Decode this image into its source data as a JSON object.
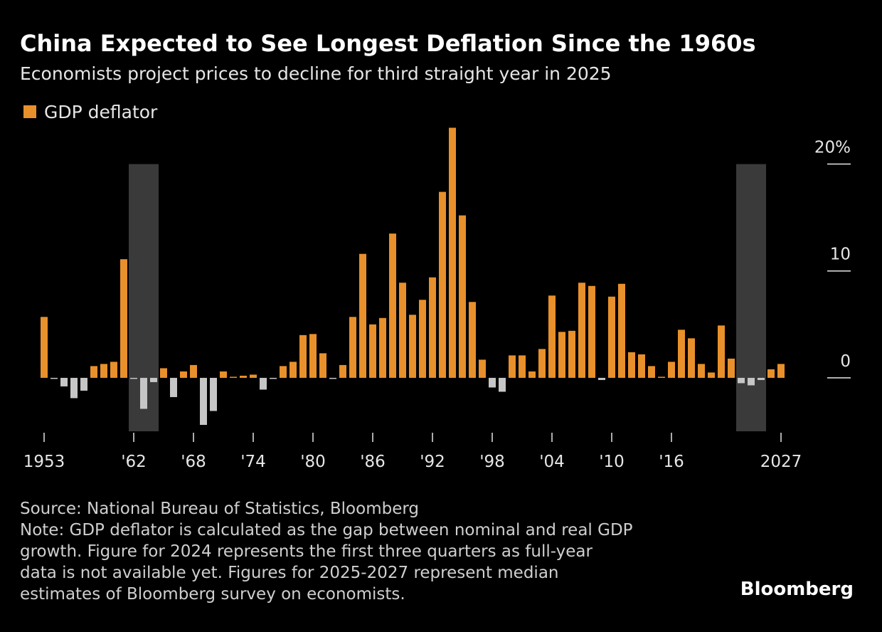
{
  "chart_data": {
    "type": "bar",
    "title": "China Expected to See Longest Deflation Since the 1960s",
    "subtitle": "Economists project prices to decline for third straight year in 2025",
    "series": [
      {
        "name": "GDP deflator",
        "color": "#e8902b",
        "negative_color": "#c6c6c6",
        "values": [
          5.7,
          -0.1,
          -0.8,
          -1.9,
          -1.2,
          1.1,
          1.3,
          1.5,
          11.1,
          -0.1,
          -2.9,
          -0.4,
          0.9,
          -1.8,
          0.6,
          1.2,
          -4.4,
          -3.1,
          0.6,
          0.1,
          0.2,
          0.3,
          -1.1,
          -0.1,
          1.1,
          1.5,
          4.0,
          4.1,
          2.3,
          -0.1,
          1.2,
          5.7,
          11.6,
          5.0,
          5.6,
          13.5,
          8.9,
          5.9,
          7.3,
          9.4,
          17.4,
          23.4,
          15.2,
          7.1,
          1.7,
          -0.9,
          -1.3,
          2.1,
          2.1,
          0.6,
          2.7,
          7.7,
          4.3,
          4.4,
          8.9,
          8.6,
          -0.2,
          7.6,
          8.8,
          2.4,
          2.2,
          1.1,
          0.1,
          1.5,
          4.5,
          3.7,
          1.3,
          0.5,
          4.9,
          1.8,
          -0.5,
          -0.7,
          -0.2,
          0.8,
          1.3
        ]
      }
    ],
    "x": [
      1953,
      1954,
      1955,
      1956,
      1957,
      1958,
      1959,
      1960,
      1961,
      1962,
      1963,
      1964,
      1965,
      1966,
      1967,
      1968,
      1969,
      1970,
      1971,
      1972,
      1973,
      1974,
      1975,
      1976,
      1977,
      1978,
      1979,
      1980,
      1981,
      1982,
      1983,
      1984,
      1985,
      1986,
      1987,
      1988,
      1989,
      1990,
      1991,
      1992,
      1993,
      1994,
      1995,
      1996,
      1997,
      1998,
      1999,
      2000,
      2001,
      2002,
      2003,
      2004,
      2005,
      2006,
      2007,
      2008,
      2009,
      2010,
      2011,
      2012,
      2013,
      2014,
      2015,
      2016,
      2017,
      2018,
      2019,
      2020,
      2021,
      2022,
      2023,
      2024,
      2025,
      2026,
      2027
    ],
    "xlim": [
      1953,
      2027
    ],
    "xticks": [
      1953,
      {
        "value": 1962,
        "label": "'62"
      },
      {
        "value": 1968,
        "label": "'68"
      },
      {
        "value": 1974,
        "label": "'74"
      },
      {
        "value": 1980,
        "label": "'80"
      },
      {
        "value": 1986,
        "label": "'86"
      },
      {
        "value": 1992,
        "label": "'92"
      },
      {
        "value": 1998,
        "label": "'98"
      },
      {
        "value": 2004,
        "label": "'04"
      },
      {
        "value": 2010,
        "label": "'10"
      },
      {
        "value": 2016,
        "label": "'16"
      },
      2027
    ],
    "ylim": [
      -5,
      23.5
    ],
    "yticks": [
      0,
      10,
      {
        "value": 20,
        "label": "20%"
      }
    ],
    "highlight_periods": [
      [
        1962,
        1964
      ],
      [
        2023,
        2025
      ]
    ],
    "highlight_color": "#3a3a3a",
    "source": "Source: National Bureau of Statistics, Bloomberg",
    "note": [
      "Note: GDP deflator is calculated as the gap between nominal and real GDP",
      "growth. Figure for 2024 represents the first three quarters as full-year",
      "data is not available yet. Figures for 2025-2027 represent median",
      "estimates of Bloomberg survey on economists."
    ],
    "brand": "Bloomberg"
  }
}
